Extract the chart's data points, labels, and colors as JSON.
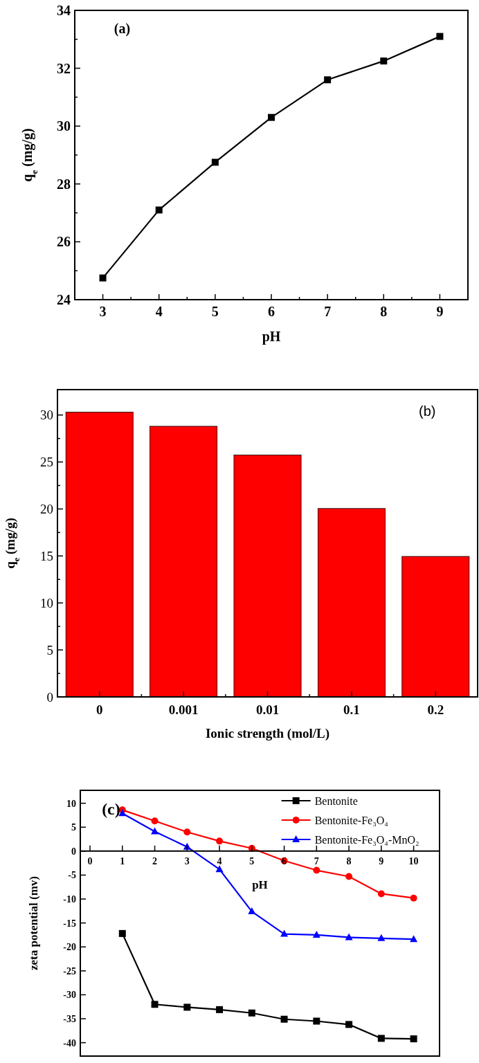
{
  "chart_data": [
    {
      "type": "line",
      "xlabel": "pH",
      "ylabel": "q$_{e}$ (mg/g)",
      "annotations": [
        "(a)"
      ],
      "x": [
        3,
        4,
        5,
        6,
        7,
        8,
        9
      ],
      "series": [
        {
          "color": "#000000",
          "values": [
            24.75,
            27.1,
            28.75,
            30.3,
            31.6,
            32.25,
            33.1
          ]
        }
      ],
      "marker": "square",
      "xlim": [
        2.5,
        9.5
      ],
      "xticks": [
        3,
        {
          "value": 3.5,
          "label": null
        },
        4,
        {
          "value": 4.5,
          "label": null
        },
        5,
        {
          "value": 5.5,
          "label": null
        },
        6,
        {
          "value": 6.5,
          "label": null
        },
        7,
        {
          "value": 7.5,
          "label": null
        },
        8,
        {
          "value": 8.5,
          "label": null
        },
        9
      ],
      "ylim": [
        24,
        34
      ],
      "yticks": [
        24,
        {
          "value": 25,
          "label": null
        },
        26,
        {
          "value": 27,
          "label": null
        },
        28,
        {
          "value": 29,
          "label": null
        },
        30,
        {
          "value": 31,
          "label": null
        },
        32,
        {
          "value": 33,
          "label": null
        },
        34
      ],
      "grid": false,
      "legend": false
    },
    {
      "type": "bar",
      "xlabel": "Ionic strength (mol/L)",
      "ylabel": "q$_{e}$ (mg/g)",
      "annotations": [
        "(b)"
      ],
      "categories": [
        "0",
        "0.001",
        "0.01",
        "0.1",
        "0.2"
      ],
      "values": [
        30.3,
        28.8,
        25.75,
        20.05,
        14.95
      ],
      "color": "#ff0000",
      "ylim": [
        0,
        32.7
      ],
      "yticks": [
        0,
        {
          "value": 2.5,
          "label": null
        },
        5,
        {
          "value": 7.5,
          "label": null
        },
        10,
        {
          "value": 12.5,
          "label": null
        },
        15,
        {
          "value": 17.5,
          "label": null
        },
        20,
        {
          "value": 22.5,
          "label": null
        },
        25,
        {
          "value": 27.5,
          "label": null
        },
        30
      ],
      "grid": false,
      "legend": false
    },
    {
      "type": "line",
      "xlabel": "pH",
      "ylabel": "zeta potential (mv)",
      "annotations": [
        "(c)"
      ],
      "x": [
        1,
        2,
        3,
        4,
        5,
        6,
        7,
        8,
        9,
        10
      ],
      "series": [
        {
          "name": "Bentonite",
          "color": "#000000",
          "marker": "square",
          "values": [
            -17.2,
            -32.0,
            -32.6,
            -33.1,
            -33.8,
            -35.1,
            -35.5,
            -36.2,
            -39.1,
            -39.2
          ]
        },
        {
          "name": "Bentonite-Fe₃O₄",
          "color": "#ff0000",
          "marker": "circle",
          "values": [
            8.6,
            6.3,
            4.0,
            2.1,
            0.6,
            -2.0,
            -4.0,
            -5.3,
            -8.9,
            -9.8
          ]
        },
        {
          "name": "Bentonite-Fe₃O₄-MnO₂",
          "color": "#0000ff",
          "marker": "triangle",
          "values": [
            7.9,
            4.1,
            0.9,
            -3.8,
            -12.6,
            -17.3,
            -17.5,
            -18.0,
            -18.2,
            -18.4
          ]
        }
      ],
      "xlim": [
        -0.3,
        10.8
      ],
      "xticks": [
        0,
        1,
        2,
        3,
        4,
        5,
        6,
        7,
        8,
        9,
        10
      ],
      "ylim": [
        -42.8,
        12.7
      ],
      "yticks": [
        -40,
        -35,
        -30,
        -25,
        -20,
        -15,
        -10,
        -5,
        0,
        5,
        10
      ],
      "grid": false,
      "legend": "top right"
    }
  ]
}
